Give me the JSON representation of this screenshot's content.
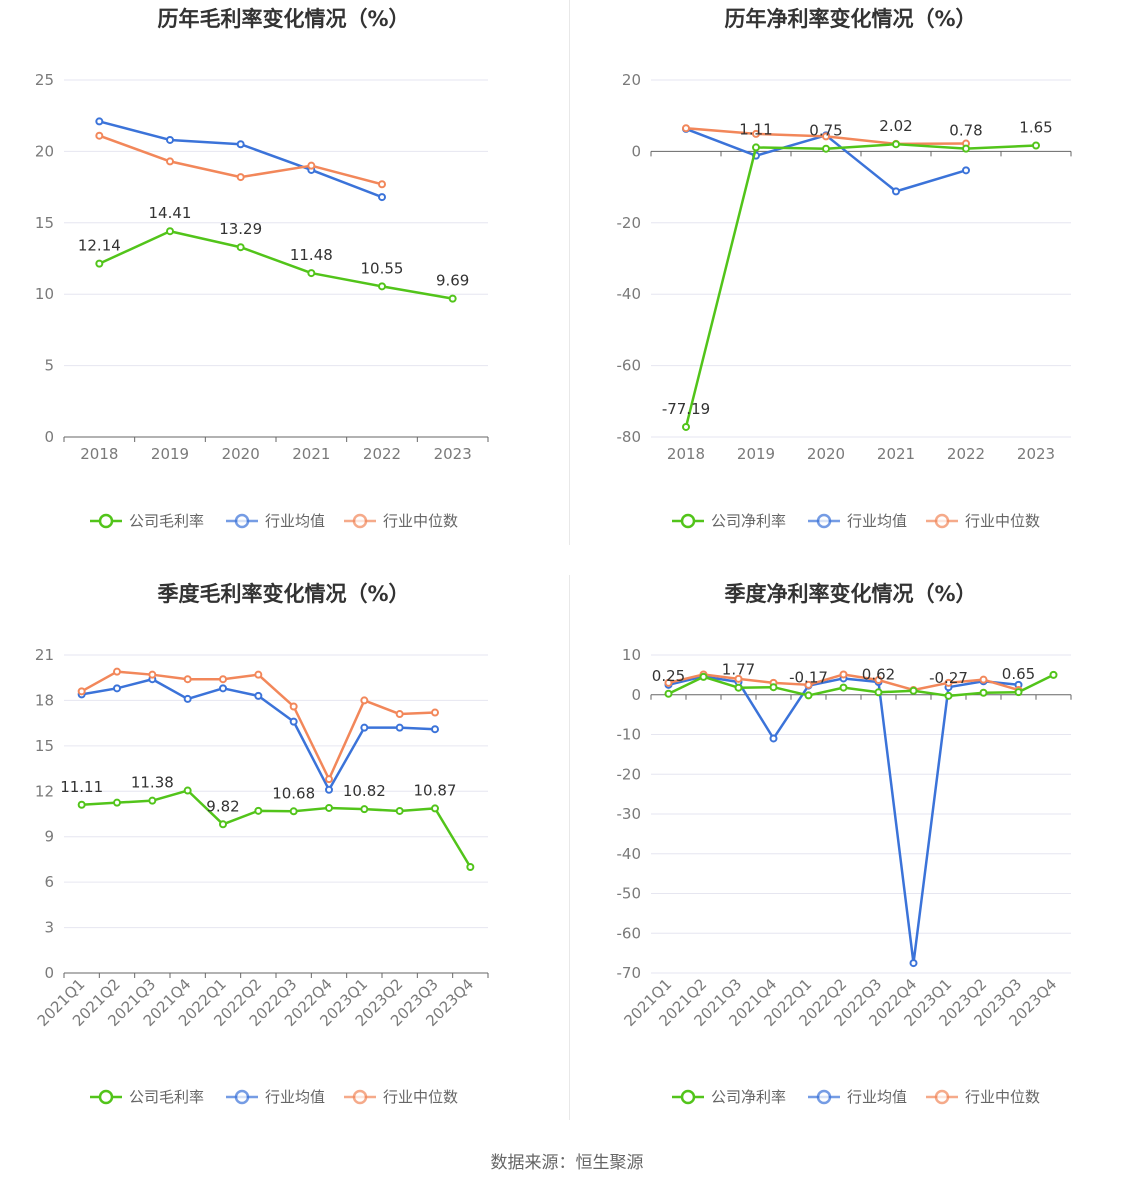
{
  "source_label": "数据来源：恒生聚源",
  "colors": {
    "company": "#52c41a",
    "average": "#3b73d9",
    "median": "#f2875a",
    "grid": "#e6e6f0",
    "axis": "#666666"
  },
  "chart_data": [
    {
      "type": "line",
      "title": "历年毛利率变化情况（%）",
      "categories": [
        "2018",
        "2019",
        "2020",
        "2021",
        "2022",
        "2023"
      ],
      "ylim": [
        0,
        25
      ],
      "yticks": [
        0,
        5,
        10,
        15,
        20,
        25
      ],
      "x_rotated": false,
      "legend_position": "bottom-center",
      "series": [
        {
          "name": "公司毛利率",
          "key": "company",
          "values": [
            12.14,
            14.41,
            13.29,
            11.48,
            10.55,
            9.69
          ],
          "labels": [
            "12.14",
            "14.41",
            "13.29",
            "11.48",
            "10.55",
            "9.69"
          ]
        },
        {
          "name": "行业均值",
          "key": "average",
          "values": [
            22.1,
            20.8,
            20.5,
            18.7,
            16.8,
            null
          ]
        },
        {
          "name": "行业中位数",
          "key": "median",
          "values": [
            21.1,
            19.3,
            18.2,
            19.0,
            17.7,
            null
          ]
        }
      ]
    },
    {
      "type": "line",
      "title": "历年净利率变化情况（%）",
      "categories": [
        "2018",
        "2019",
        "2020",
        "2021",
        "2022",
        "2023"
      ],
      "ylim": [
        -80,
        20
      ],
      "yticks": [
        -80,
        -60,
        -40,
        -20,
        0,
        20
      ],
      "x_rotated": false,
      "legend_position": "bottom-center",
      "series": [
        {
          "name": "公司净利率",
          "key": "company",
          "values": [
            -77.19,
            1.11,
            0.75,
            2.02,
            0.78,
            1.65
          ],
          "labels": [
            "-77.19",
            "1.11",
            "0.75",
            "2.02",
            "0.78",
            "1.65"
          ]
        },
        {
          "name": "行业均值",
          "key": "average",
          "values": [
            6.3,
            -1.2,
            4.5,
            -11.2,
            -5.3,
            null
          ]
        },
        {
          "name": "行业中位数",
          "key": "median",
          "values": [
            6.5,
            4.9,
            4.2,
            2.1,
            2.2,
            null
          ]
        }
      ]
    },
    {
      "type": "line",
      "title": "季度毛利率变化情况（%）",
      "categories": [
        "2021Q1",
        "2021Q2",
        "2021Q3",
        "2021Q4",
        "2022Q1",
        "2022Q2",
        "2022Q3",
        "2022Q4",
        "2023Q1",
        "2023Q2",
        "2023Q3",
        "2023Q4"
      ],
      "ylim": [
        0,
        21
      ],
      "yticks": [
        0,
        3,
        6,
        9,
        12,
        15,
        18,
        21
      ],
      "x_rotated": true,
      "legend_position": "bottom-center",
      "series": [
        {
          "name": "公司毛利率",
          "key": "company",
          "values": [
            11.11,
            11.25,
            11.38,
            12.05,
            9.82,
            10.71,
            10.68,
            10.9,
            10.82,
            10.7,
            10.87,
            7.0
          ],
          "labels": [
            "11.11",
            "",
            "11.38",
            "",
            "9.82",
            "",
            "10.68",
            "",
            "10.82",
            "",
            "10.87",
            ""
          ]
        },
        {
          "name": "行业均值",
          "key": "average",
          "values": [
            18.4,
            18.8,
            19.4,
            18.1,
            18.8,
            18.3,
            16.6,
            12.1,
            16.2,
            16.2,
            16.1,
            null
          ]
        },
        {
          "name": "行业中位数",
          "key": "median",
          "values": [
            18.6,
            19.9,
            19.7,
            19.4,
            19.4,
            19.7,
            17.6,
            12.8,
            18.0,
            17.1,
            17.2,
            null
          ]
        }
      ]
    },
    {
      "type": "line",
      "title": "季度净利率变化情况（%）",
      "categories": [
        "2021Q1",
        "2021Q2",
        "2021Q3",
        "2021Q4",
        "2022Q1",
        "2022Q2",
        "2022Q3",
        "2022Q4",
        "2023Q1",
        "2023Q2",
        "2023Q3",
        "2023Q4"
      ],
      "ylim": [
        -70,
        10
      ],
      "yticks": [
        -70,
        -60,
        -50,
        -40,
        -30,
        -20,
        -10,
        0,
        10
      ],
      "x_rotated": true,
      "legend_position": "bottom-center",
      "series": [
        {
          "name": "公司净利率",
          "key": "company",
          "values": [
            0.25,
            4.5,
            1.77,
            1.9,
            -0.17,
            1.8,
            0.62,
            1.0,
            -0.27,
            0.5,
            0.65,
            5.0
          ],
          "labels": [
            "0.25",
            "",
            "1.77",
            "",
            "-0.17",
            "",
            "0.62",
            "",
            "-0.27",
            "",
            "0.65",
            ""
          ]
        },
        {
          "name": "行业均值",
          "key": "average",
          "values": [
            2.5,
            4.6,
            3.2,
            -11.0,
            2.3,
            4.1,
            3.2,
            -67.5,
            1.9,
            3.4,
            2.5,
            null
          ]
        },
        {
          "name": "行业中位数",
          "key": "median",
          "values": [
            3.0,
            5.1,
            4.0,
            3.0,
            2.5,
            5.1,
            3.7,
            1.2,
            3.0,
            3.8,
            1.2,
            null
          ]
        }
      ]
    }
  ]
}
